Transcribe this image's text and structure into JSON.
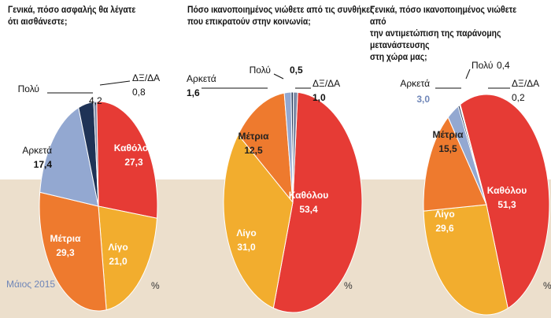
{
  "footer": {
    "date_label": "Μάιος 2015",
    "unit": "%"
  },
  "chart_data": [
    {
      "type": "pie",
      "title": "Γενικά, πόσο ασφαλής θα λέγατε\nότι αισθάνεστε;",
      "slices": [
        {
          "label": "Καθόλου",
          "value": 27.3,
          "color": "#e63b35"
        },
        {
          "label": "Λίγο",
          "value": 21.0,
          "color": "#f2ad2e"
        },
        {
          "label": "Μέτρια",
          "value": 29.3,
          "color": "#ee7a2e"
        },
        {
          "label": "Αρκετά",
          "value": 17.4,
          "color": "#93a8d1"
        },
        {
          "label": "Πολύ",
          "value": 4.2,
          "color": "#1f3356"
        },
        {
          "label": "ΔΞ/ΔΑ",
          "value": 0.8,
          "color": "#7c8aa6"
        }
      ]
    },
    {
      "type": "pie",
      "title": "Πόσο ικανοποιημένος νιώθετε από τις συνθήκες\nπου επικρατούν στην κοινωνία;",
      "slices": [
        {
          "label": "Καθόλου",
          "value": 53.4,
          "color": "#e63b35"
        },
        {
          "label": "Λίγο",
          "value": 31.0,
          "color": "#f2ad2e"
        },
        {
          "label": "Μέτρια",
          "value": 12.5,
          "color": "#ee7a2e"
        },
        {
          "label": "Αρκετά",
          "value": 1.6,
          "color": "#93a8d1"
        },
        {
          "label": "Πολύ",
          "value": 0.5,
          "color": "#1f3356"
        },
        {
          "label": "ΔΞ/ΔΑ",
          "value": 1.0,
          "color": "#7c8aa6"
        }
      ]
    },
    {
      "type": "pie",
      "title": "Γενικά, πόσο ικανοποιημένος νιώθετε από\nτην αντιμετώπιση της παράνομης μετανάστευσης\nστη χώρα μας;",
      "slices": [
        {
          "label": "Καθόλου",
          "value": 51.3,
          "color": "#e63b35"
        },
        {
          "label": "Λίγο",
          "value": 29.6,
          "color": "#f2ad2e"
        },
        {
          "label": "Μέτρια",
          "value": 15.5,
          "color": "#ee7a2e"
        },
        {
          "label": "Αρκετά",
          "value": 3.0,
          "color": "#93a8d1"
        },
        {
          "label": "Πολύ",
          "value": 0.4,
          "color": "#1f3356"
        },
        {
          "label": "ΔΞ/ΔΑ",
          "value": 0.2,
          "color": "#7c8aa6"
        }
      ]
    }
  ]
}
